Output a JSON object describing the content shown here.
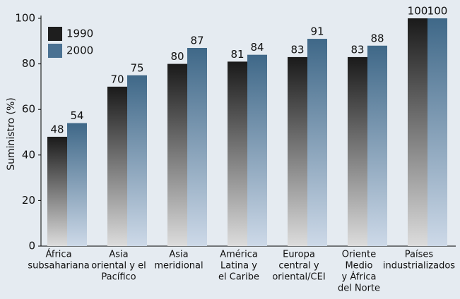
{
  "chart_data": {
    "type": "bar",
    "y_label": "Suministro (%)",
    "categories": [
      [
        "África",
        "subsahariana"
      ],
      [
        "Asia",
        "oriental y el",
        "Pacífico"
      ],
      [
        "Asia",
        "meridional"
      ],
      [
        "América",
        "Latina y",
        "el Caribe"
      ],
      [
        "Europa",
        "central y",
        "oriental/CEI"
      ],
      [
        "Oriente",
        "Medio",
        "y África",
        "del Norte"
      ],
      [
        "Países",
        "industrializados"
      ]
    ],
    "series": [
      {
        "name": "1990",
        "color": "#1e1e1e",
        "values": [
          48,
          70,
          80,
          81,
          83,
          83,
          100
        ]
      },
      {
        "name": "2000",
        "color": "#4a7192",
        "values": [
          54,
          75,
          87,
          84,
          91,
          88,
          100
        ]
      }
    ],
    "ylim": [
      0,
      100
    ],
    "yticks": [
      0,
      20,
      40,
      60,
      80,
      100
    ],
    "legend": "top-left"
  }
}
